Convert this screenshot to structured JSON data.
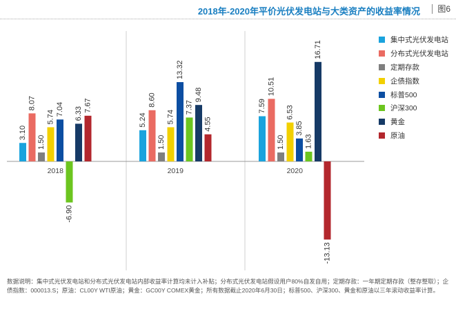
{
  "header": {
    "title": "2018年-2020年平价光伏发电站与大类资产的收益率情况",
    "figure_label": "图6"
  },
  "chart_data": {
    "type": "bar",
    "title": "2018年-2020年平价光伏发电站与大类资产的收益率情况",
    "categories": [
      "2018",
      "2019",
      "2020"
    ],
    "ylim": [
      -14,
      18
    ],
    "xlabel": "",
    "ylabel": "",
    "legend_position": "right",
    "series": [
      {
        "name": "集中式光伏发电站",
        "color": "#1aa3dd",
        "values": [
          3.1,
          5.24,
          7.59
        ],
        "labels": [
          "3.10",
          "5.24",
          "7.59"
        ]
      },
      {
        "name": "分布式光伏发电站",
        "color": "#ea6b62",
        "values": [
          8.07,
          8.6,
          10.51
        ],
        "labels": [
          "8.07",
          "8.60",
          "10.51"
        ]
      },
      {
        "name": "定期存款",
        "color": "#7f7f7f",
        "values": [
          1.5,
          1.5,
          1.5
        ],
        "labels": [
          "1.50",
          "1.50",
          "1.50"
        ]
      },
      {
        "name": "企债指数",
        "color": "#f2d000",
        "values": [
          5.74,
          5.74,
          6.53
        ],
        "labels": [
          "5.74",
          "5.74",
          "6.53"
        ]
      },
      {
        "name": "标普500",
        "color": "#0c4ea2",
        "values": [
          7.04,
          13.32,
          3.85
        ],
        "labels": [
          "7.04",
          "13.32",
          "3.85"
        ]
      },
      {
        "name": "沪深300",
        "color": "#6cc51f",
        "values": [
          -6.9,
          7.37,
          1.63
        ],
        "labels": [
          "-6.90",
          "7.37",
          "1.63"
        ]
      },
      {
        "name": "黄金",
        "color": "#163a66",
        "values": [
          6.33,
          9.48,
          16.71
        ],
        "labels": [
          "6.33",
          "9.48",
          "16.71"
        ]
      },
      {
        "name": "原油",
        "color": "#b3272d",
        "values": [
          7.67,
          4.55,
          -13.13
        ],
        "labels": [
          "7.67",
          "4.55",
          "-13.13"
        ]
      }
    ]
  },
  "footnote": "数据说明：集中式光伏发电站和分布式光伏发电站内部收益率计算均未计入补贴；分布式光伏发电站假设用户80%自发自用；定期存款：一年期定期存款（整存整取）；企债指数：000013.S；原油：CL00Y WTI原油；黄金：GC00Y COMEX黄金；所有数据截止2020年6月30日；标普500、沪深300、黄金和原油以三年滚动收益率计算。"
}
